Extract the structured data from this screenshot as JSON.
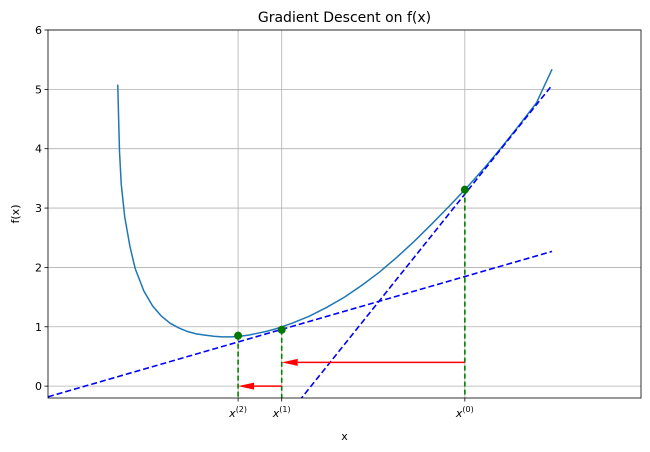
{
  "chart_data": {
    "type": "line",
    "title": "Gradient Descent on f(x)",
    "xlabel": "x",
    "ylabel": "f(x)",
    "xlim": [
      -0.1,
      3.3
    ],
    "ylim": [
      -0.2,
      6
    ],
    "grid": true,
    "y_ticks": [
      0,
      1,
      2,
      3,
      4,
      5,
      6
    ],
    "x_ticks": [
      {
        "value": 0.99,
        "base": "x",
        "sup": "(2)"
      },
      {
        "value": 1.24,
        "base": "x",
        "sup": "(1)"
      },
      {
        "value": 2.29,
        "base": "x",
        "sup": "(0)"
      }
    ],
    "series": [
      {
        "kind": "curve",
        "color": "#1f77b4",
        "x": [
          0.3,
          0.305,
          0.31,
          0.32,
          0.34,
          0.37,
          0.4,
          0.45,
          0.5,
          0.55,
          0.6,
          0.65,
          0.7,
          0.75,
          0.8,
          0.85,
          0.9,
          0.95,
          1.0,
          1.05,
          1.1,
          1.15,
          1.2,
          1.3,
          1.4,
          1.5,
          1.6,
          1.7,
          1.8,
          1.9,
          2.0,
          2.1,
          2.2,
          2.3,
          2.4,
          2.5,
          2.6,
          2.7,
          2.79
        ],
        "y": [
          5.08,
          4.5,
          3.95,
          3.4,
          2.85,
          2.35,
          1.98,
          1.6,
          1.35,
          1.18,
          1.06,
          0.98,
          0.92,
          0.88,
          0.86,
          0.84,
          0.83,
          0.83,
          0.84,
          0.86,
          0.89,
          0.92,
          0.96,
          1.06,
          1.18,
          1.33,
          1.5,
          1.7,
          1.92,
          2.17,
          2.44,
          2.73,
          3.03,
          3.34,
          3.67,
          4.02,
          4.39,
          4.77,
          5.34
        ]
      },
      {
        "kind": "tangent",
        "color": "#0000ff",
        "x": [
          1.34,
          2.79
        ],
        "y": [
          -0.25,
          5.07
        ]
      },
      {
        "kind": "tangent",
        "color": "#0000ff",
        "x": [
          -0.1,
          2.79
        ],
        "y": [
          -0.18,
          2.27
        ]
      }
    ],
    "points": [
      {
        "x": 2.29,
        "y": 3.31
      },
      {
        "x": 1.24,
        "y": 0.95
      },
      {
        "x": 0.99,
        "y": 0.85
      }
    ],
    "drop_lines": [
      {
        "x": 2.29,
        "y": 3.31
      },
      {
        "x": 1.24,
        "y": 0.95
      },
      {
        "x": 0.99,
        "y": 0.85
      }
    ],
    "arrows": [
      {
        "from_x": 2.29,
        "to_x": 1.24,
        "y": 0.4
      },
      {
        "from_x": 1.24,
        "to_x": 0.99,
        "y": 0.0
      }
    ],
    "colors": {
      "curve": "#1f77b4",
      "tangent": "#0000ff",
      "point": "#007700",
      "drop": "#008000",
      "arrow": "#ff0000",
      "grid": "#b0b0b0"
    }
  }
}
